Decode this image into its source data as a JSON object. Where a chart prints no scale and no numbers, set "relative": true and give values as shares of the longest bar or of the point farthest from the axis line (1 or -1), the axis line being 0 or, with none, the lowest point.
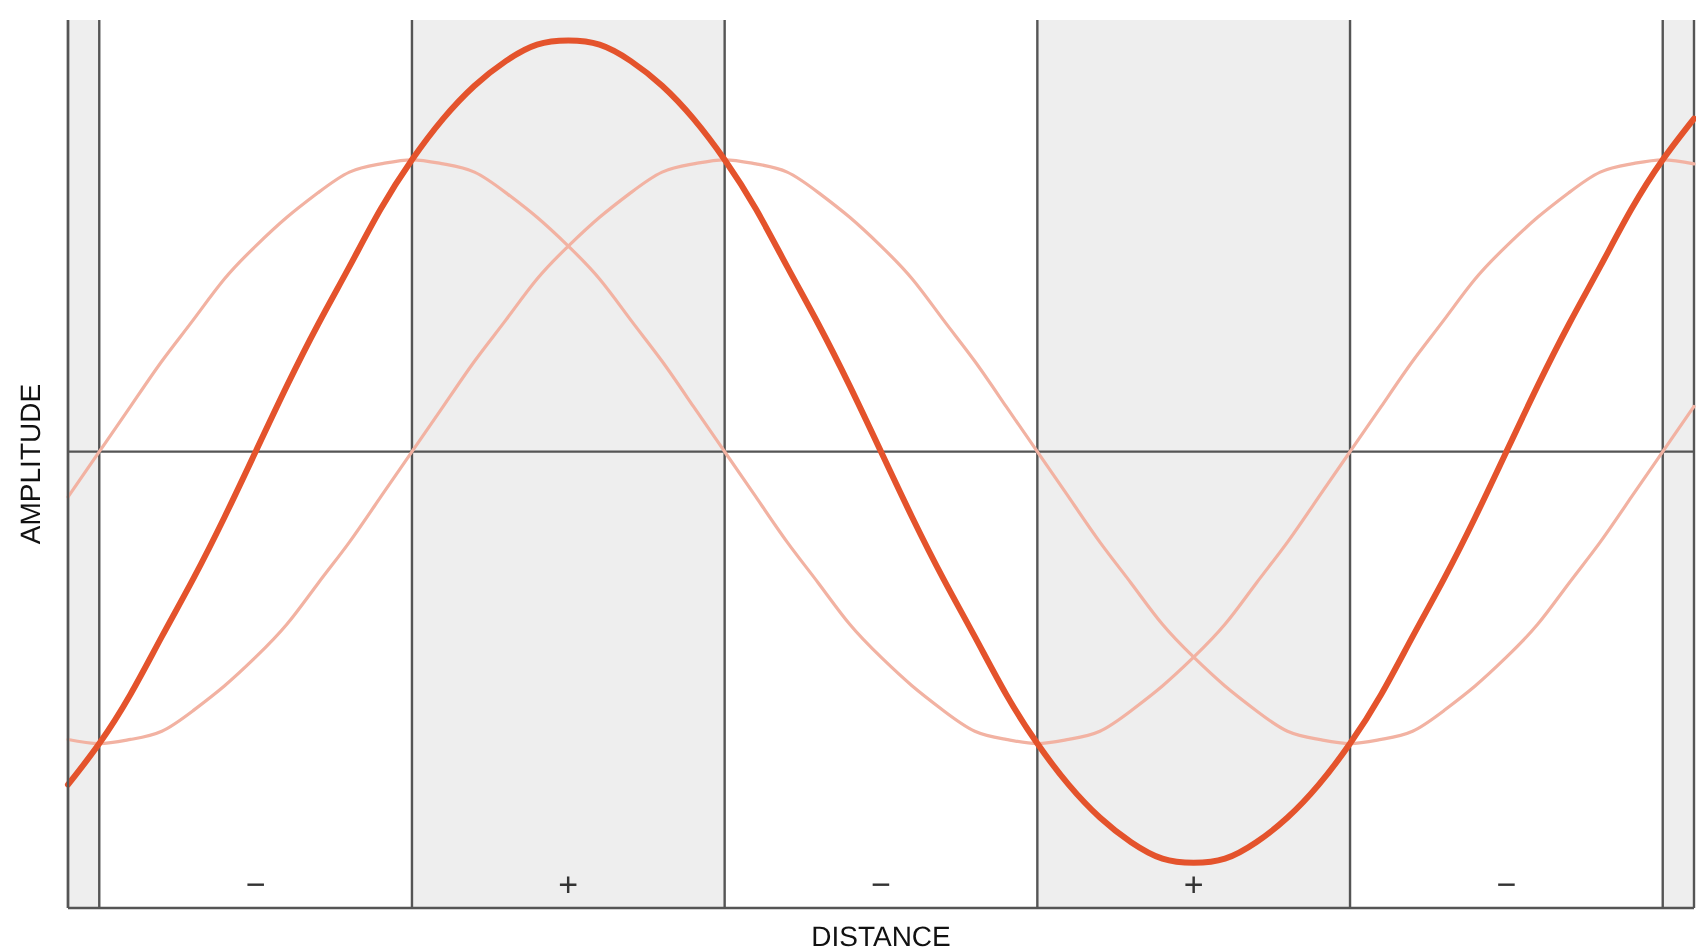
{
  "chart_data": {
    "type": "line",
    "xlabel": "DISTANCE",
    "ylabel": "AMPLITUDE",
    "relative": true,
    "grid": "x",
    "categories": [
      null,
      null,
      null,
      null,
      null,
      null,
      "−",
      null,
      null,
      null,
      null,
      null,
      null,
      null,
      null,
      null,
      "+",
      null,
      null,
      null,
      null,
      null,
      null,
      null,
      null,
      null,
      "−",
      null,
      null,
      null,
      null,
      null,
      null,
      null,
      null,
      null,
      "+",
      null,
      null,
      null,
      null,
      null,
      null,
      null,
      null,
      null,
      "−",
      null,
      null,
      null,
      null,
      null,
      null
    ],
    "series": [
      {
        "color": "#f2b2a2",
        "values": [
          -0.11,
          0,
          0.11,
          0.22,
          0.32,
          0.42,
          0.5,
          0.57,
          0.63,
          0.68,
          0.7,
          0.71,
          0.7,
          0.68,
          0.63,
          0.57,
          0.5,
          0.42,
          0.32,
          0.22,
          0.11,
          0,
          -0.11,
          -0.22,
          -0.32,
          -0.42,
          -0.5,
          -0.57,
          -0.63,
          -0.68,
          -0.7,
          -0.71,
          -0.7,
          -0.68,
          -0.63,
          -0.57,
          -0.5,
          -0.42,
          -0.32,
          -0.22,
          -0.11,
          0,
          0.11,
          0.22,
          0.32,
          0.42,
          0.5,
          0.57,
          0.63,
          0.68,
          0.7,
          0.71,
          0.7
        ]
      },
      {
        "color": "#f2b2a2",
        "values": [
          -0.7,
          -0.71,
          -0.7,
          -0.68,
          -0.63,
          -0.57,
          -0.5,
          -0.42,
          -0.32,
          -0.22,
          -0.11,
          0,
          0.11,
          0.22,
          0.32,
          0.42,
          0.5,
          0.57,
          0.63,
          0.68,
          0.7,
          0.71,
          0.7,
          0.68,
          0.63,
          0.57,
          0.5,
          0.42,
          0.32,
          0.22,
          0.11,
          0,
          -0.11,
          -0.22,
          -0.32,
          -0.42,
          -0.5,
          -0.57,
          -0.63,
          -0.68,
          -0.7,
          -0.71,
          -0.7,
          -0.68,
          -0.63,
          -0.57,
          -0.5,
          -0.42,
          -0.32,
          -0.22,
          -0.11,
          0,
          0.11
        ]
      },
      {
        "color": "#e4532c",
        "values": [
          -0.81,
          -0.71,
          -0.59,
          -0.45,
          -0.31,
          -0.16,
          0,
          0.16,
          0.31,
          0.45,
          0.59,
          0.71,
          0.81,
          0.89,
          0.95,
          0.99,
          1,
          0.99,
          0.95,
          0.89,
          0.81,
          0.71,
          0.59,
          0.45,
          0.31,
          0.16,
          0,
          -0.16,
          -0.31,
          -0.45,
          -0.59,
          -0.71,
          -0.81,
          -0.89,
          -0.95,
          -0.99,
          -1,
          -0.99,
          -0.95,
          -0.89,
          -0.81,
          -0.71,
          -0.59,
          -0.45,
          -0.31,
          -0.16,
          0,
          0.16,
          0.31,
          0.45,
          0.59,
          0.71,
          0.81
        ]
      }
    ]
  }
}
